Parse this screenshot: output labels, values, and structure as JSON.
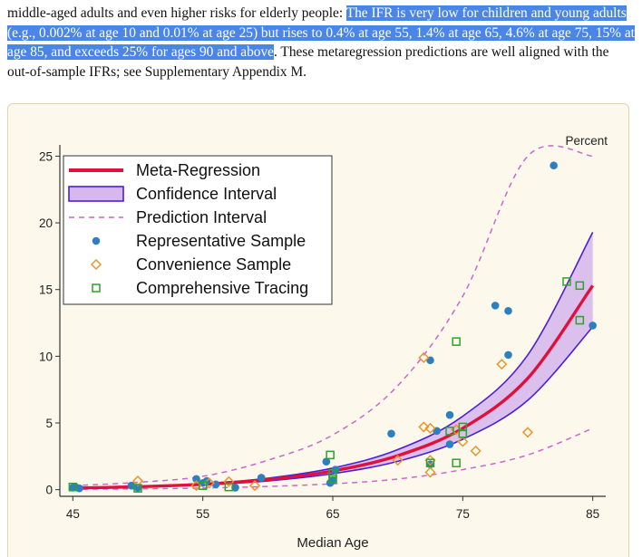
{
  "paragraph": {
    "plain_start": "middle-aged adults and even higher risks for elderly people: ",
    "highlighted": "The IFR is very low for children and young adults (e.g., 0.002% at age 10 and 0.01% at age 25) but rises to 0.4% at age 55, 1.4% at age 65, 4.6% at age 75, 15% at age 85, and exceeds 25% for ages 90 and above",
    "plain_end": ". These metaregression predictions are well aligned with the out-of-sample IFRs; see Supplementary Appendix M."
  },
  "colors": {
    "highlight": "#4a86e8",
    "regression": "#e0103c",
    "ci_fill": "#d7b8ec",
    "ci_edge": "#4b1fd6",
    "prediction": "#cc66cc",
    "representative": "#2e7fbd",
    "convenience": "#e8962e",
    "comprehensive": "#2aa52a"
  },
  "chart_data": {
    "type": "scatter",
    "title": "",
    "xlabel": "Median Age",
    "ylabel": "Percent",
    "xlim": [
      44,
      86
    ],
    "ylim": [
      -0.5,
      25.3
    ],
    "xticks": [
      45,
      55,
      65,
      75,
      85
    ],
    "yticks": [
      0,
      5,
      10,
      15,
      20,
      25
    ],
    "legend": [
      {
        "key": "regression",
        "label": "Meta-Regression"
      },
      {
        "key": "ci",
        "label": "Confidence Interval"
      },
      {
        "key": "prediction",
        "label": "Prediction Interval"
      },
      {
        "key": "representative",
        "label": "Representative Sample"
      },
      {
        "key": "convenience",
        "label": "Convenience Sample"
      },
      {
        "key": "comprehensive",
        "label": "Comprehensive Tracing"
      }
    ],
    "curves": {
      "x": [
        45,
        50,
        55,
        60,
        65,
        70,
        75,
        80,
        85
      ],
      "regression": [
        0.12,
        0.22,
        0.4,
        0.75,
        1.4,
        2.55,
        4.6,
        8.35,
        15.3
      ],
      "ci_upper": [
        0.14,
        0.25,
        0.45,
        0.86,
        1.62,
        3.0,
        5.5,
        10.1,
        19.3
      ],
      "ci_lower": [
        0.1,
        0.19,
        0.35,
        0.65,
        1.2,
        2.12,
        3.78,
        6.7,
        12.2
      ],
      "pi_upper": [
        0.3,
        0.55,
        1.0,
        2.2,
        4.1,
        7.8,
        14.5,
        25.0,
        25.0
      ],
      "pi_lower": [
        0.03,
        0.06,
        0.12,
        0.24,
        0.44,
        0.8,
        1.5,
        2.6,
        4.6
      ]
    },
    "series": [
      {
        "name": "Representative Sample",
        "marker": "circle",
        "points": [
          [
            45,
            0.15
          ],
          [
            45.2,
            0.2
          ],
          [
            45.5,
            0.1
          ],
          [
            49.5,
            0.3
          ],
          [
            50,
            0.15
          ],
          [
            54.5,
            0.8
          ],
          [
            55,
            0.5
          ],
          [
            55.3,
            0.65
          ],
          [
            56,
            0.4
          ],
          [
            57.5,
            0.15
          ],
          [
            59.5,
            0.9
          ],
          [
            64.5,
            2.1
          ],
          [
            65,
            0.7
          ],
          [
            64.8,
            0.5
          ],
          [
            65.2,
            1.5
          ],
          [
            69.5,
            4.2
          ],
          [
            72.5,
            9.7
          ],
          [
            73,
            4.4
          ],
          [
            74,
            5.6
          ],
          [
            74,
            3.4
          ],
          [
            72.5,
            1.9
          ],
          [
            77.5,
            13.8
          ],
          [
            78.5,
            13.4
          ],
          [
            78.5,
            10.1
          ],
          [
            82,
            24.3
          ],
          [
            85,
            12.3
          ]
        ]
      },
      {
        "name": "Convenience Sample",
        "marker": "diamond",
        "points": [
          [
            50,
            0.65
          ],
          [
            54.5,
            0.3
          ],
          [
            55.5,
            0.5
          ],
          [
            57,
            0.6
          ],
          [
            59,
            0.3
          ],
          [
            70,
            2.2
          ],
          [
            72,
            4.7
          ],
          [
            72,
            9.9
          ],
          [
            72.5,
            4.6
          ],
          [
            72.5,
            2.2
          ],
          [
            72.5,
            1.3
          ],
          [
            74.5,
            4.5
          ],
          [
            75,
            3.6
          ],
          [
            76,
            2.9
          ],
          [
            78,
            9.4
          ],
          [
            80,
            4.3
          ]
        ]
      },
      {
        "name": "Comprehensive Tracing",
        "marker": "square",
        "points": [
          [
            45,
            0.2
          ],
          [
            50,
            0.1
          ],
          [
            55,
            0.3
          ],
          [
            57,
            0.2
          ],
          [
            64.8,
            2.6
          ],
          [
            65,
            1.2
          ],
          [
            65,
            0.8
          ],
          [
            72.5,
            2.0
          ],
          [
            74.5,
            11.1
          ],
          [
            75,
            4.7
          ],
          [
            75,
            4.2
          ],
          [
            74,
            4.4
          ],
          [
            74.5,
            2.0
          ],
          [
            83,
            15.6
          ],
          [
            84,
            15.3
          ],
          [
            84,
            12.7
          ]
        ]
      }
    ]
  }
}
